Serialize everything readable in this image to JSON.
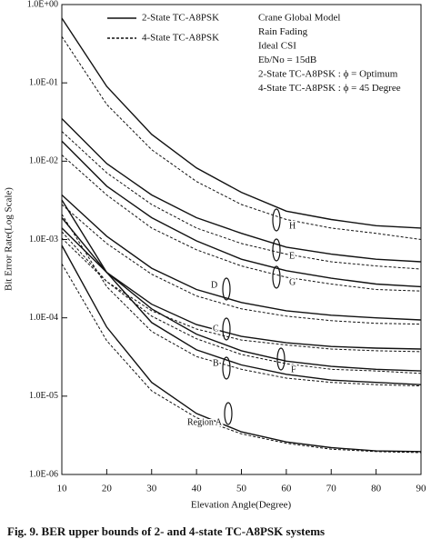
{
  "chart_data": {
    "type": "line",
    "log_y": true,
    "grid": false,
    "color": "#111111",
    "x_label": "Elevation Angle(Degree)",
    "y_label": "Bit Error Rate(Log Scale)",
    "caption": "Fig. 9.   BER upper bounds of 2- and 4-state TC-A8PSK systems",
    "xlim": [
      10,
      90
    ],
    "xticks": [
      10,
      20,
      30,
      40,
      50,
      60,
      70,
      80,
      90
    ],
    "ylim": [
      1e-06,
      1
    ],
    "yticks": [
      {
        "value": 1,
        "label": "1.0E+00"
      },
      {
        "value": 0.1,
        "label": "1.0E-01"
      },
      {
        "value": 0.01,
        "label": "1.0E-02"
      },
      {
        "value": 0.001,
        "label": "1.0E-03"
      },
      {
        "value": 0.0001,
        "label": "1.0E-04"
      },
      {
        "value": 1e-05,
        "label": "1.0E-05"
      },
      {
        "value": 1e-06,
        "label": "1.0E-06"
      }
    ],
    "annotations": [
      "Crane Global Model",
      "Rain Fading",
      "Ideal CSI",
      "Eb/No = 15dB",
      "2-State TC-A8PSK : ϕ = Optimum",
      "4-State TC-A8PSK : ϕ = 45 Degree"
    ],
    "regions": [
      "H",
      "E",
      "G",
      "D",
      "C",
      "B",
      "F",
      "Region A"
    ],
    "x": [
      10,
      20,
      30,
      40,
      50,
      60,
      70,
      80,
      90
    ],
    "series": [
      {
        "name": "2-State TC-A8PSK",
        "dash": false,
        "curves": [
          [
            0.67,
            0.09,
            0.022,
            0.0082,
            0.004,
            0.0023,
            0.0018,
            0.0015,
            0.0014
          ],
          [
            0.035,
            0.0093,
            0.0037,
            0.0019,
            0.0012,
            0.0008,
            0.00065,
            0.00056,
            0.00052
          ],
          [
            0.018,
            0.0048,
            0.0019,
            0.00096,
            0.00056,
            0.0004,
            0.00032,
            0.00027,
            0.00025
          ],
          [
            0.0037,
            0.0011,
            0.00043,
            0.00023,
            0.000157,
            0.000123,
            0.000108,
            0.0001,
            9.4e-05
          ],
          [
            0.0014,
            0.00038,
            0.000149,
            8.2e-05,
            5.8e-05,
            4.8e-05,
            4.3e-05,
            4.1e-05,
            4e-05
          ],
          [
            0.0032,
            0.00038,
            8.7e-05,
            3.9e-05,
            2.5e-05,
            1.9e-05,
            1.6e-05,
            1.5e-05,
            1.4e-05
          ],
          [
            0.0019,
            0.00038,
            0.00013,
            6.2e-05,
            3.8e-05,
            2.8e-05,
            2.4e-05,
            2.2e-05,
            2.1e-05
          ],
          [
            0.00084,
            7.6e-05,
            1.5e-05,
            6e-06,
            3.5e-06,
            2.6e-06,
            2.2e-06,
            2e-06,
            1.96e-06
          ]
        ]
      },
      {
        "name": "4-State TC-A8PSK",
        "dash": true,
        "curves": [
          [
            0.39,
            0.053,
            0.014,
            0.0055,
            0.0028,
            0.0018,
            0.0014,
            0.0012,
            0.001
          ],
          [
            0.024,
            0.0071,
            0.0028,
            0.0014,
            0.00089,
            0.00065,
            0.00052,
            0.00046,
            0.00042
          ],
          [
            0.012,
            0.0037,
            0.0014,
            0.00074,
            0.00046,
            0.00033,
            0.00027,
            0.00023,
            0.00022
          ],
          [
            0.0028,
            0.00089,
            0.00036,
            0.00019,
            0.00013,
            0.000105,
            9.2e-05,
            8.5e-05,
            8.3e-05
          ],
          [
            0.00104,
            0.00029,
            0.000123,
            7.2e-05,
            5.2e-05,
            4.5e-05,
            4e-05,
            3.8e-05,
            3.7e-05
          ],
          [
            0.0021,
            0.00025,
            6.7e-05,
            3.2e-05,
            2.2e-05,
            1.7e-05,
            1.5e-05,
            1.4e-05,
            1.35e-05
          ],
          [
            0.00126,
            0.00029,
            0.000105,
            5.4e-05,
            3.4e-05,
            2.6e-05,
            2.2e-05,
            2.1e-05,
            1.95e-05
          ],
          [
            0.00049,
            5.1e-05,
            1.17e-05,
            5.3e-06,
            3.3e-06,
            2.5e-06,
            2.1e-06,
            1.96e-06,
            1.9e-06
          ]
        ]
      }
    ]
  }
}
